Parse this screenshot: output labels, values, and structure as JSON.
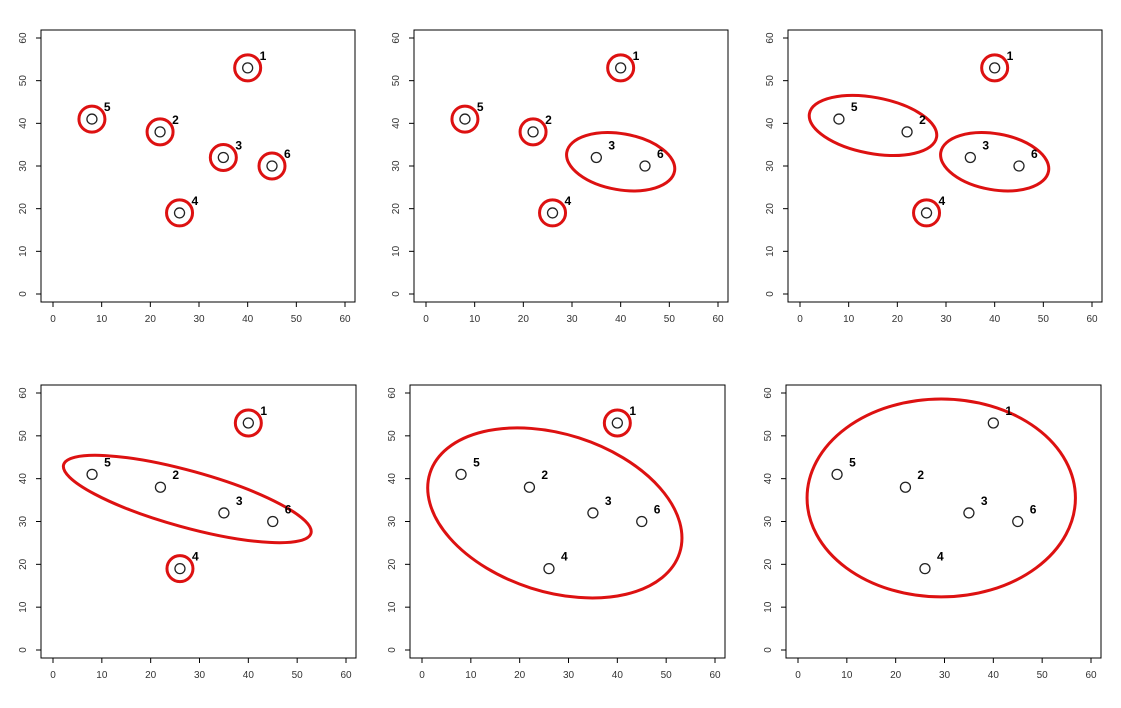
{
  "chart_data": [
    {
      "type": "scatter",
      "xlim": [
        0,
        60
      ],
      "ylim": [
        0,
        60
      ],
      "xticks": [
        "0",
        "10",
        "20",
        "30",
        "40",
        "50",
        "60"
      ],
      "yticks": [
        "0",
        "10",
        "20",
        "30",
        "40",
        "50",
        "60"
      ],
      "points": [
        {
          "label": "1",
          "x": 40,
          "y": 53
        },
        {
          "label": "2",
          "x": 22,
          "y": 38
        },
        {
          "label": "3",
          "x": 35,
          "y": 32
        },
        {
          "label": "4",
          "x": 26,
          "y": 19
        },
        {
          "label": "5",
          "x": 8,
          "y": 41
        },
        {
          "label": "6",
          "x": 45,
          "y": 30
        }
      ],
      "clusters": [
        [
          "1"
        ],
        [
          "2"
        ],
        [
          "3"
        ],
        [
          "4"
        ],
        [
          "5"
        ],
        [
          "6"
        ]
      ],
      "cluster_color": "#dd1111"
    },
    {
      "type": "scatter",
      "xlim": [
        0,
        60
      ],
      "ylim": [
        0,
        60
      ],
      "xticks": [
        "0",
        "10",
        "20",
        "30",
        "40",
        "50",
        "60"
      ],
      "yticks": [
        "0",
        "10",
        "20",
        "30",
        "40",
        "50",
        "60"
      ],
      "points": [
        {
          "label": "1",
          "x": 40,
          "y": 53
        },
        {
          "label": "2",
          "x": 22,
          "y": 38
        },
        {
          "label": "3",
          "x": 35,
          "y": 32
        },
        {
          "label": "4",
          "x": 26,
          "y": 19
        },
        {
          "label": "5",
          "x": 8,
          "y": 41
        },
        {
          "label": "6",
          "x": 45,
          "y": 30
        }
      ],
      "clusters": [
        [
          "1"
        ],
        [
          "2"
        ],
        [
          "3",
          "6"
        ],
        [
          "4"
        ],
        [
          "5"
        ]
      ],
      "cluster_color": "#dd1111"
    },
    {
      "type": "scatter",
      "xlim": [
        0,
        60
      ],
      "ylim": [
        0,
        60
      ],
      "xticks": [
        "0",
        "10",
        "20",
        "30",
        "40",
        "50",
        "60"
      ],
      "yticks": [
        "0",
        "10",
        "20",
        "30",
        "40",
        "50",
        "60"
      ],
      "points": [
        {
          "label": "1",
          "x": 40,
          "y": 53
        },
        {
          "label": "2",
          "x": 22,
          "y": 38
        },
        {
          "label": "3",
          "x": 35,
          "y": 32
        },
        {
          "label": "4",
          "x": 26,
          "y": 19
        },
        {
          "label": "5",
          "x": 8,
          "y": 41
        },
        {
          "label": "6",
          "x": 45,
          "y": 30
        }
      ],
      "clusters": [
        [
          "1"
        ],
        [
          "2",
          "5"
        ],
        [
          "3",
          "6"
        ],
        [
          "4"
        ]
      ],
      "cluster_color": "#dd1111"
    },
    {
      "type": "scatter",
      "xlim": [
        0,
        60
      ],
      "ylim": [
        0,
        60
      ],
      "xticks": [
        "0",
        "10",
        "20",
        "30",
        "40",
        "50",
        "60"
      ],
      "yticks": [
        "0",
        "10",
        "20",
        "30",
        "40",
        "50",
        "60"
      ],
      "points": [
        {
          "label": "1",
          "x": 40,
          "y": 53
        },
        {
          "label": "2",
          "x": 22,
          "y": 38
        },
        {
          "label": "3",
          "x": 35,
          "y": 32
        },
        {
          "label": "4",
          "x": 26,
          "y": 19
        },
        {
          "label": "5",
          "x": 8,
          "y": 41
        },
        {
          "label": "6",
          "x": 45,
          "y": 30
        }
      ],
      "clusters": [
        [
          "1"
        ],
        [
          "2",
          "3",
          "5",
          "6"
        ],
        [
          "4"
        ]
      ],
      "cluster_color": "#dd1111"
    },
    {
      "type": "scatter",
      "xlim": [
        0,
        60
      ],
      "ylim": [
        0,
        60
      ],
      "xticks": [
        "0",
        "10",
        "20",
        "30",
        "40",
        "50",
        "60"
      ],
      "yticks": [
        "0",
        "10",
        "20",
        "30",
        "40",
        "50",
        "60"
      ],
      "points": [
        {
          "label": "1",
          "x": 40,
          "y": 53
        },
        {
          "label": "2",
          "x": 22,
          "y": 38
        },
        {
          "label": "3",
          "x": 35,
          "y": 32
        },
        {
          "label": "4",
          "x": 26,
          "y": 19
        },
        {
          "label": "5",
          "x": 8,
          "y": 41
        },
        {
          "label": "6",
          "x": 45,
          "y": 30
        }
      ],
      "clusters": [
        [
          "1"
        ],
        [
          "2",
          "3",
          "4",
          "5",
          "6"
        ]
      ],
      "cluster_color": "#dd1111"
    },
    {
      "type": "scatter",
      "xlim": [
        0,
        60
      ],
      "ylim": [
        0,
        60
      ],
      "xticks": [
        "0",
        "10",
        "20",
        "30",
        "40",
        "50",
        "60"
      ],
      "yticks": [
        "0",
        "10",
        "20",
        "30",
        "40",
        "50",
        "60"
      ],
      "points": [
        {
          "label": "1",
          "x": 40,
          "y": 53
        },
        {
          "label": "2",
          "x": 22,
          "y": 38
        },
        {
          "label": "3",
          "x": 35,
          "y": 32
        },
        {
          "label": "4",
          "x": 26,
          "y": 19
        },
        {
          "label": "5",
          "x": 8,
          "y": 41
        },
        {
          "label": "6",
          "x": 45,
          "y": 30
        }
      ],
      "clusters": [
        [
          "1",
          "2",
          "3",
          "4",
          "5",
          "6"
        ]
      ],
      "cluster_color": "#dd1111"
    }
  ]
}
